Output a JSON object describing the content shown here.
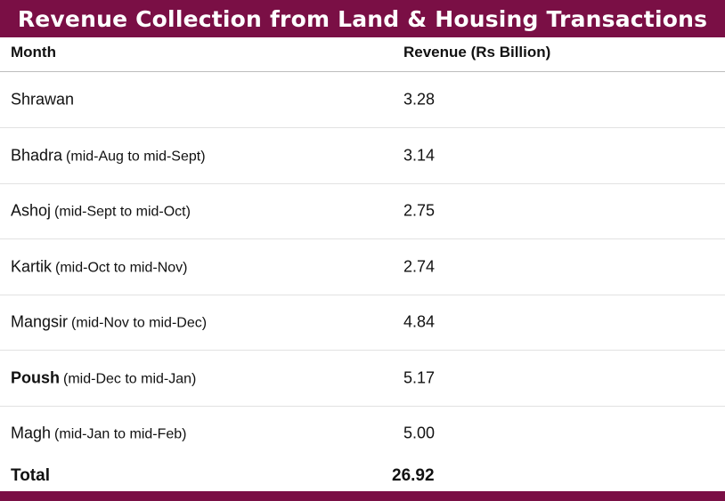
{
  "chart_data": {
    "type": "table",
    "title": "Revenue Collection from Land & Housing Transactions",
    "columns": [
      "Month",
      "Revenue (Rs Billion)"
    ],
    "rows": [
      {
        "month": "Shrawan",
        "note": "",
        "value": "3.28",
        "bold": false
      },
      {
        "month": "Bhadra",
        "note": "(mid-Aug to mid-Sept)",
        "value": "3.14",
        "bold": false
      },
      {
        "month": "Ashoj",
        "note": "(mid-Sept to mid-Oct)",
        "value": "2.75",
        "bold": false
      },
      {
        "month": "Kartik",
        "note": "(mid-Oct to mid-Nov)",
        "value": "2.74",
        "bold": false
      },
      {
        "month": "Mangsir",
        "note": "(mid-Nov to mid-Dec)",
        "value": "4.84",
        "bold": false
      },
      {
        "month": "Poush",
        "note": "(mid-Dec to mid-Jan)",
        "value": "5.17",
        "bold": true
      },
      {
        "month": "Magh",
        "note": "(mid-Jan to mid-Feb)",
        "value": "5.00",
        "bold": false
      }
    ],
    "total": {
      "label": "Total",
      "value": "26.92"
    }
  },
  "colors": {
    "accent": "#7a0f45"
  }
}
